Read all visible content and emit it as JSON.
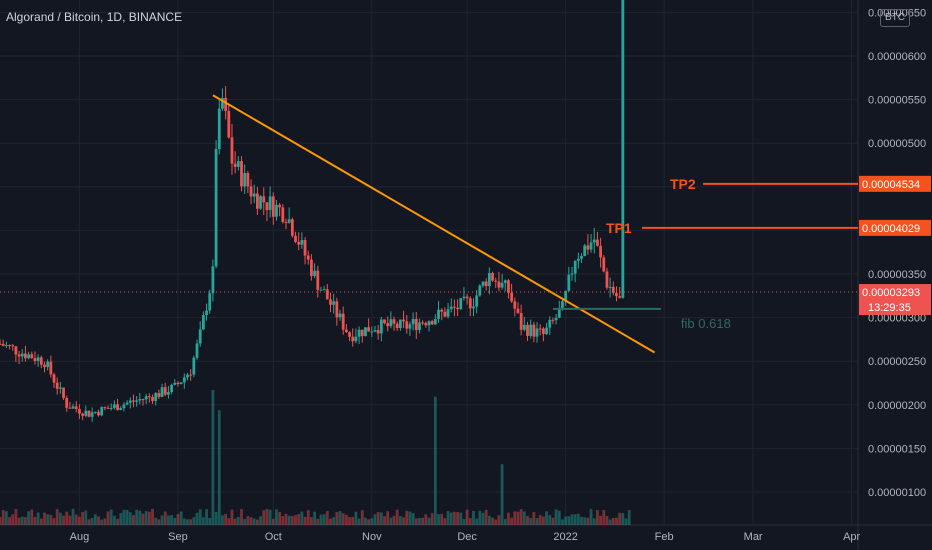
{
  "header": {
    "symbol_title": "Algorand / Bitcoin, 1D, BINANCE",
    "currency": "BTC"
  },
  "colors": {
    "background": "#131722",
    "grid": "#1f2430",
    "up": "#26a69a",
    "down": "#ef5350",
    "trendline": "#ff9800",
    "annotation": "#f7521d",
    "fib": "#2e6b5e",
    "axis_text": "#b2b5be",
    "price_line": "#ef5350"
  },
  "chart_data": {
    "type": "candlestick",
    "title": "Algorand / Bitcoin, 1D, BINANCE",
    "ylim": [
      7e-07,
      6.8e-06
    ],
    "y_ticks": [
      "0.00000100",
      "0.00000150",
      "0.00000200",
      "0.00000250",
      "0.00000300",
      "0.00000350",
      "0.00000400",
      "0.00000450",
      "0.00000500",
      "0.00000550",
      "0.00000600",
      "0.00000650"
    ],
    "y_tick_values": [
      1e-06,
      1.5e-06,
      2e-06,
      2.5e-06,
      3e-06,
      3.5e-06,
      4e-06,
      4.5e-06,
      5e-06,
      5.5e-06,
      6e-06,
      6.5e-06
    ],
    "x_ticks": [
      "Aug",
      "Sep",
      "Oct",
      "Nov",
      "Dec",
      "2022",
      "Feb",
      "Mar",
      "Apr"
    ],
    "x_tick_dates": [
      "2021-08-01",
      "2021-09-01",
      "2021-10-01",
      "2021-11-01",
      "2021-12-01",
      "2022-01-01",
      "2022-02-01",
      "2022-03-01",
      "2022-04-01"
    ],
    "x_range": [
      "2021-07-07",
      "2022-04-03"
    ],
    "price_path_dates": [
      "2021-07-07",
      "2021-07-14",
      "2021-07-21",
      "2021-07-28",
      "2021-08-04",
      "2021-08-14",
      "2021-08-24",
      "2021-08-31",
      "2021-09-05",
      "2021-09-08",
      "2021-09-12",
      "2021-09-13",
      "2021-09-15",
      "2021-09-18",
      "2021-09-25",
      "2021-10-05",
      "2021-10-15",
      "2021-10-20",
      "2021-10-25",
      "2021-11-02",
      "2021-11-12",
      "2021-11-20",
      "2021-11-27",
      "2021-12-03",
      "2021-12-08",
      "2021-12-14",
      "2021-12-18",
      "2021-12-25",
      "2021-12-31",
      "2022-01-04",
      "2022-01-10",
      "2022-01-14",
      "2022-01-18",
      "2022-01-21"
    ],
    "price_path_values": [
      2.7e-06,
      2.6e-06,
      2.5e-06,
      2e-06,
      1.9e-06,
      2e-06,
      2.1e-06,
      2.2e-06,
      2.4e-06,
      2.8e-06,
      3.5e-06,
      5e-06,
      5.5e-06,
      4.8e-06,
      4.4e-06,
      4.2e-06,
      3.4e-06,
      3.1e-06,
      2.8e-06,
      2.9e-06,
      2.9e-06,
      3e-06,
      3.1e-06,
      3.2e-06,
      3.5e-06,
      3.3e-06,
      2.9e-06,
      2.8e-06,
      3.1e-06,
      3.7e-06,
      3.9e-06,
      3.4e-06,
      3.2e-06,
      3.293e-05
    ],
    "trendline": {
      "start": {
        "date": "2021-09-12",
        "value": 5.55e-06
      },
      "end": {
        "date": "2022-01-29",
        "value": 2.6e-06
      }
    },
    "annotations": [
      {
        "label": "TP1",
        "value": 4.029e-05,
        "price_label": "0.00004029",
        "start_date": "2022-01-29"
      },
      {
        "label": "TP2",
        "value": 4.534e-05,
        "price_label": "0.00004534",
        "start_date": "2022-02-01"
      }
    ],
    "fib": {
      "label": "fib 0.618",
      "value": 3.1e-06,
      "start_date": "2021-12-28",
      "end_date": "2022-01-31"
    },
    "last_price": {
      "label": "0.00003293",
      "countdown": "13:29:35",
      "value": 3.293e-05
    },
    "volume_spikes": [
      {
        "date": "2021-09-12",
        "value": 1.0
      },
      {
        "date": "2021-09-14",
        "value": 0.85
      },
      {
        "date": "2021-11-21",
        "value": 0.95
      },
      {
        "date": "2021-12-12",
        "value": 0.45
      }
    ]
  }
}
